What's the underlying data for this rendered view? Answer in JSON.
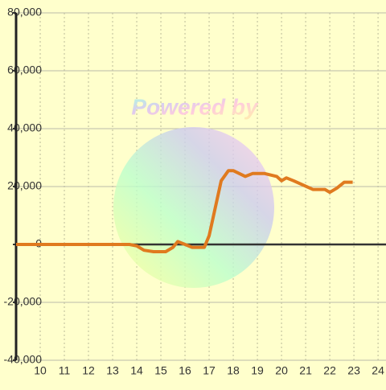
{
  "chart_data": {
    "type": "line",
    "watermark": "Powered by",
    "x": [
      9,
      13.7,
      14,
      14.3,
      14.7,
      15.2,
      15.5,
      15.7,
      16,
      16.3,
      16.8,
      17,
      17.5,
      17.8,
      18,
      18.5,
      18.8,
      19.3,
      19.8,
      20,
      20.2,
      20.5,
      20.9,
      21.3,
      21.8,
      22,
      22.3,
      22.6,
      22.95
    ],
    "series": [
      {
        "color": "#e07a1f",
        "values": [
          0,
          0,
          -500,
          -2000,
          -2500,
          -2500,
          -1000,
          1000,
          0,
          -1000,
          -1000,
          3000,
          22000,
          25500,
          25500,
          23500,
          24500,
          24500,
          23500,
          22000,
          23000,
          22000,
          20500,
          19000,
          19000,
          18000,
          19500,
          21500,
          21500
        ]
      }
    ],
    "xlim": [
      9,
      24.33
    ],
    "xticks": [
      10,
      11,
      12,
      13,
      14,
      15,
      16,
      17,
      18,
      19,
      20,
      21,
      22,
      23,
      24
    ],
    "ylim": [
      -40000,
      80000
    ],
    "yticks": [
      {
        "value": -40000,
        "label": "-40,000"
      },
      {
        "value": -20000,
        "label": "-20,000"
      },
      0,
      {
        "value": 20000,
        "label": "20,000"
      },
      {
        "value": 40000,
        "label": "40,000"
      },
      {
        "value": 60000,
        "label": "60,000"
      },
      {
        "value": 80000,
        "label": "80,000"
      }
    ],
    "grid": true
  }
}
